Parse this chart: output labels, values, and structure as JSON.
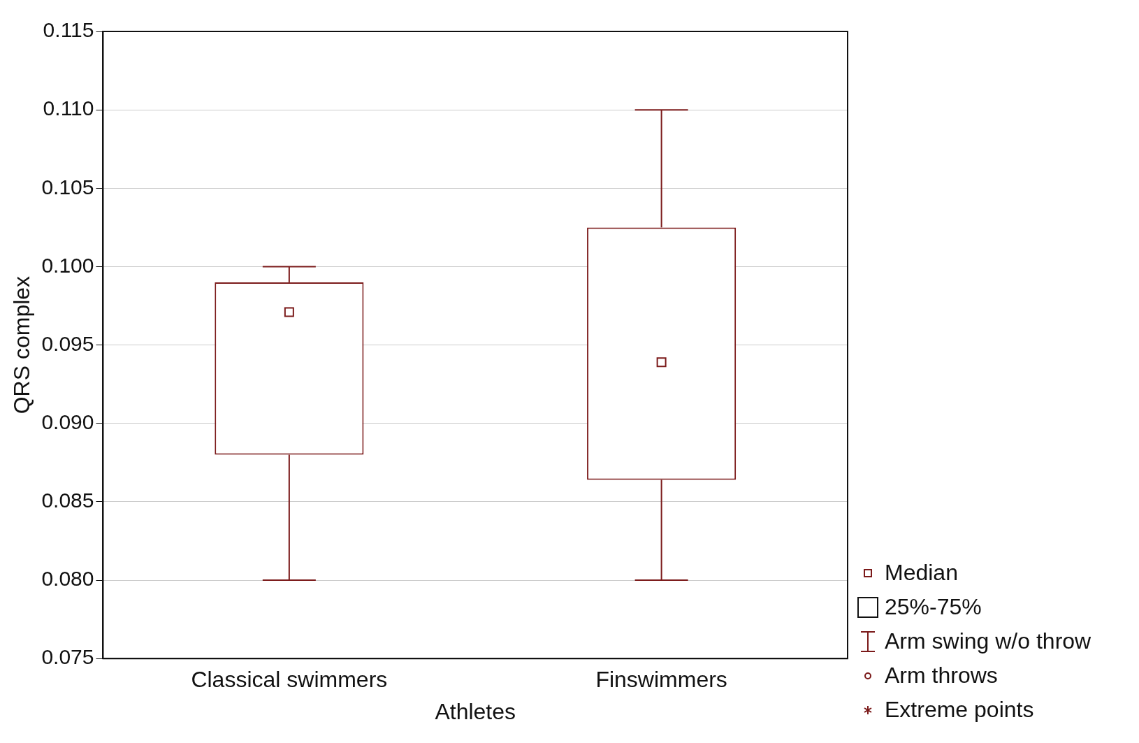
{
  "chart_data": {
    "type": "box",
    "xlabel": "Athletes",
    "ylabel": "QRS complex",
    "categories": [
      "Classical swimmers",
      "Finswimmers"
    ],
    "color": "#7b1a1a",
    "boxes": [
      {
        "low": 0.08,
        "q1": 0.088,
        "median": 0.0971,
        "q3": 0.099,
        "high": 0.1
      },
      {
        "low": 0.08,
        "q1": 0.0864,
        "median": 0.0939,
        "q3": 0.1025,
        "high": 0.11
      }
    ],
    "ylim": [
      0.075,
      0.115
    ],
    "yticks": [
      {
        "value": 0.075,
        "label": "0.075"
      },
      {
        "value": 0.08,
        "label": "0.080"
      },
      {
        "value": 0.085,
        "label": "0.085"
      },
      {
        "value": 0.09,
        "label": "0.090"
      },
      {
        "value": 0.095,
        "label": "0.095"
      },
      {
        "value": 0.1,
        "label": "0.100"
      },
      {
        "value": 0.105,
        "label": "0.105"
      },
      {
        "value": 0.11,
        "label": "0.110"
      },
      {
        "value": 0.115,
        "label": "0.115"
      }
    ],
    "grid": "y",
    "annotations": [
      "Median",
      "25%-75%",
      "Arm swing w/o throw",
      "Arm throws",
      "Extreme points"
    ]
  }
}
